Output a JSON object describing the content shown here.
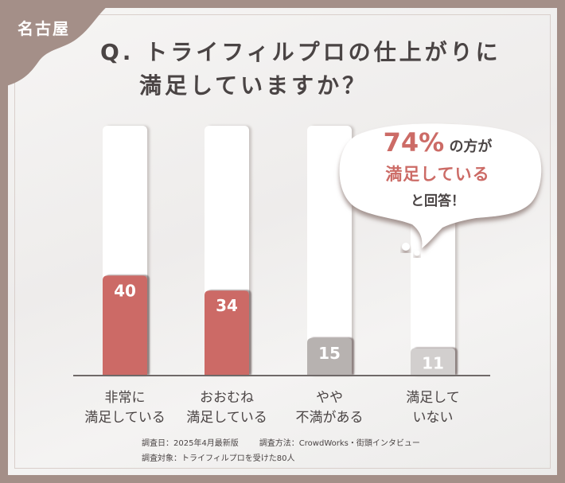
{
  "badge": {
    "region": "名古屋"
  },
  "title": {
    "line1": "Q. トライフィルプロの仕上がりに",
    "line2": "満足していますか？"
  },
  "callout": {
    "percent": "74%",
    "line1_suffix": "の方が",
    "line2": "満足している",
    "line3": "と回答！"
  },
  "notes": {
    "survey_date": "調査日：2025年4月最新版",
    "survey_method": "調査方法：CrowdWorks・街頭インタビュー",
    "survey_target": "調査対象：トライフィルプロを受けた80人"
  },
  "colors": {
    "accent": "#cc6b66",
    "neutral": "#b7b2b0",
    "frame": "#a48f88",
    "text": "#4a4444"
  },
  "chart_data": {
    "type": "bar",
    "title": "Q. トライフィルプロの仕上がりに満足していますか？",
    "categories": [
      [
        "非常に",
        "満足している"
      ],
      [
        "おおむね",
        "満足している"
      ],
      [
        "やや",
        "不満がある"
      ],
      [
        "満足して",
        "いない"
      ]
    ],
    "values": [
      40,
      34,
      15,
      11
    ],
    "bar_colors": [
      "#cc6b66",
      "#cc6b66",
      "#b7b2b0",
      "#d2cfce"
    ],
    "ylim": [
      0,
      100
    ],
    "grid": false,
    "legend": "none",
    "xlabel": "",
    "ylabel": ""
  }
}
